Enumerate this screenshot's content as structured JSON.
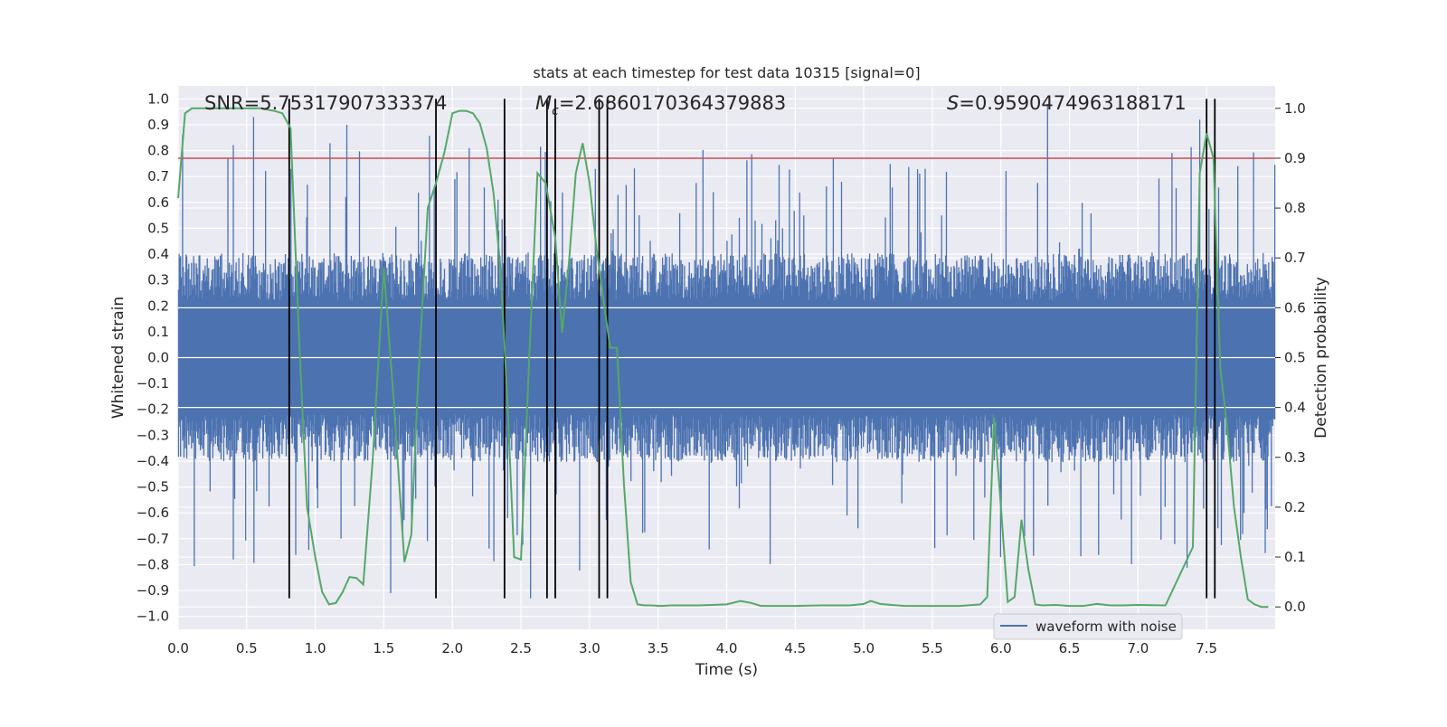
{
  "chart_data": {
    "type": "line",
    "title": "stats at each timestep for test data 10315 [signal=0]",
    "xlabel": "Time (s)",
    "ylabel": "Whitened strain",
    "y2label": "Detection probability",
    "xlim": [
      0.0,
      8.0
    ],
    "ylim": [
      -1.05,
      1.05
    ],
    "y2lim": [
      -0.045,
      1.045
    ],
    "grid": true,
    "legend_position": "lower-right",
    "x_ticks": [
      "0.0",
      "0.5",
      "1.0",
      "1.5",
      "2.0",
      "2.5",
      "3.0",
      "3.5",
      "4.0",
      "4.5",
      "5.0",
      "5.5",
      "6.0",
      "6.5",
      "7.0",
      "7.5"
    ],
    "x_tick_values": [
      0.0,
      0.5,
      1.0,
      1.5,
      2.0,
      2.5,
      3.0,
      3.5,
      4.0,
      4.5,
      5.0,
      5.5,
      6.0,
      6.5,
      7.0,
      7.5
    ],
    "y_ticks": [
      "1.0",
      "0.9",
      "0.8",
      "0.7",
      "0.6",
      "0.5",
      "0.4",
      "0.3",
      "0.2",
      "0.1",
      "0.0",
      "−0.1",
      "−0.2",
      "−0.3",
      "−0.4",
      "−0.5",
      "−0.6",
      "−0.7",
      "−0.8",
      "−0.9",
      "−1.0"
    ],
    "y_tick_values": [
      1.0,
      0.9,
      0.8,
      0.7,
      0.6,
      0.5,
      0.4,
      0.3,
      0.2,
      0.1,
      0.0,
      -0.1,
      -0.2,
      -0.3,
      -0.4,
      -0.5,
      -0.6,
      -0.7,
      -0.8,
      -0.9,
      -1.0
    ],
    "y2_ticks": [
      "1.0",
      "0.9",
      "0.8",
      "0.7",
      "0.6",
      "0.5",
      "0.4",
      "0.3",
      "0.2",
      "0.1",
      "0.0"
    ],
    "y2_tick_values": [
      1.0,
      0.9,
      0.8,
      0.7,
      0.6,
      0.5,
      0.4,
      0.3,
      0.2,
      0.1,
      0.0
    ],
    "stats": {
      "snr": "SNR=5.75317907333374",
      "mc_symbol": "M",
      "mc_subscript": "c",
      "mc_value": "=2.6860170364379883",
      "s_symbol": "S",
      "s_value": "=0.9590474963188171"
    },
    "threshold": {
      "y2": 0.9,
      "color": "#c44e52"
    },
    "colors": {
      "waveform": "#4c72b0",
      "probability": "#55a868",
      "vlines": "#000000",
      "background": "#eaeaf2",
      "grid": "#ffffff"
    },
    "waveform": {
      "name": "waveform with noise",
      "core_envelope": 0.22,
      "typical_peak": 0.45,
      "max_spike": 0.98,
      "min_spike": -0.93
    },
    "detection_lines_x": [
      0.81,
      1.88,
      2.38,
      2.69,
      2.75,
      3.07,
      3.13,
      7.5,
      7.56
    ],
    "detection_lines_range": [
      -0.93,
      1.0
    ],
    "series": [
      {
        "name": "detection probability",
        "x": [
          0.0,
          0.05,
          0.1,
          0.2,
          0.3,
          0.4,
          0.5,
          0.6,
          0.7,
          0.76,
          0.82,
          0.88,
          0.94,
          1.0,
          1.05,
          1.1,
          1.15,
          1.2,
          1.25,
          1.3,
          1.35,
          1.42,
          1.5,
          1.57,
          1.65,
          1.7,
          1.75,
          1.82,
          1.88,
          1.94,
          2.0,
          2.05,
          2.1,
          2.15,
          2.2,
          2.25,
          2.3,
          2.35,
          2.4,
          2.45,
          2.5,
          2.56,
          2.62,
          2.68,
          2.75,
          2.8,
          2.85,
          2.9,
          2.95,
          3.0,
          3.05,
          3.1,
          3.15,
          3.2,
          3.25,
          3.3,
          3.35,
          3.4,
          3.45,
          3.52,
          3.6,
          3.8,
          4.0,
          4.1,
          4.18,
          4.25,
          4.3,
          4.5,
          4.7,
          4.9,
          5.0,
          5.05,
          5.12,
          5.2,
          5.3,
          5.5,
          5.7,
          5.85,
          5.9,
          5.95,
          6.0,
          6.05,
          6.1,
          6.15,
          6.2,
          6.25,
          6.3,
          6.4,
          6.5,
          6.6,
          6.7,
          6.8,
          6.9,
          7.0,
          7.2,
          7.4,
          7.45,
          7.5,
          7.55,
          7.6,
          7.65,
          7.7,
          7.75,
          7.8,
          7.85,
          7.9,
          7.95
        ],
        "values": [
          0.82,
          0.99,
          1.0,
          1.0,
          1.0,
          1.0,
          1.0,
          1.0,
          0.995,
          0.99,
          0.96,
          0.55,
          0.2,
          0.1,
          0.03,
          0.005,
          0.008,
          0.03,
          0.06,
          0.058,
          0.045,
          0.3,
          0.68,
          0.42,
          0.09,
          0.145,
          0.45,
          0.8,
          0.85,
          0.91,
          0.99,
          0.995,
          0.995,
          0.99,
          0.97,
          0.92,
          0.83,
          0.68,
          0.42,
          0.1,
          0.095,
          0.5,
          0.87,
          0.85,
          0.74,
          0.55,
          0.69,
          0.87,
          0.93,
          0.85,
          0.72,
          0.62,
          0.52,
          0.52,
          0.25,
          0.05,
          0.005,
          0.003,
          0.003,
          0.002,
          0.003,
          0.003,
          0.005,
          0.012,
          0.008,
          0.002,
          0.002,
          0.002,
          0.003,
          0.003,
          0.006,
          0.012,
          0.006,
          0.004,
          0.002,
          0.002,
          0.002,
          0.005,
          0.02,
          0.38,
          0.2,
          0.01,
          0.02,
          0.175,
          0.075,
          0.005,
          0.003,
          0.004,
          0.002,
          0.002,
          0.006,
          0.003,
          0.003,
          0.004,
          0.003,
          0.12,
          0.87,
          0.95,
          0.9,
          0.48,
          0.36,
          0.2,
          0.1,
          0.015,
          0.005,
          0.0,
          0.0
        ]
      }
    ]
  }
}
